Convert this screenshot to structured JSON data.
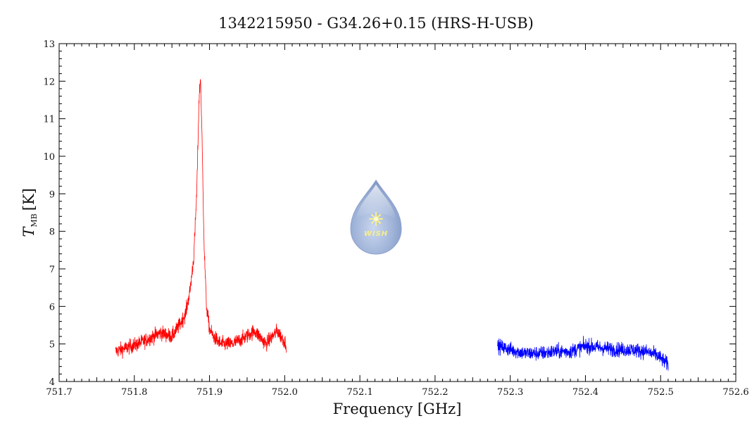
{
  "chart_data": {
    "type": "line",
    "title": "1342215950 - G34.26+0.15 (HRS-H-USB)",
    "xlabel": "Frequency [GHz]",
    "ylabel_main": "T",
    "ylabel_sub": "MB",
    "ylabel_unit": "[K]",
    "xlim": [
      751.7,
      752.6
    ],
    "ylim": [
      4,
      13
    ],
    "x_ticks": [
      "751.7",
      "751.8",
      "751.9",
      "752.0",
      "752.1",
      "752.2",
      "752.3",
      "752.4",
      "752.5",
      "752.6"
    ],
    "y_ticks": [
      "4",
      "5",
      "6",
      "7",
      "8",
      "9",
      "10",
      "11",
      "12",
      "13"
    ],
    "grid": false,
    "series": [
      {
        "color": "#ff0000",
        "x": [
          751.775,
          751.79,
          751.805,
          751.82,
          751.835,
          751.85,
          751.86,
          751.868,
          751.874,
          751.879,
          751.883,
          751.886,
          751.888,
          751.89,
          751.893,
          751.896,
          751.9,
          751.905,
          751.915,
          751.93,
          751.945,
          751.96,
          751.975,
          751.99,
          752.002
        ],
        "y": [
          4.8,
          4.9,
          5.0,
          5.15,
          5.3,
          5.2,
          5.5,
          5.8,
          6.4,
          7.3,
          9.0,
          11.5,
          12.1,
          10.5,
          7.5,
          6.0,
          5.4,
          5.2,
          5.0,
          5.0,
          5.15,
          5.35,
          5.0,
          5.35,
          5.0
        ]
      },
      {
        "color": "#0000ff",
        "x": [
          752.283,
          752.3,
          752.32,
          752.34,
          752.36,
          752.38,
          752.4,
          752.42,
          752.44,
          752.46,
          752.48,
          752.495,
          752.51
        ],
        "y": [
          4.95,
          4.85,
          4.75,
          4.75,
          4.8,
          4.8,
          4.95,
          4.9,
          4.85,
          4.85,
          4.8,
          4.7,
          4.45
        ]
      }
    ],
    "noise_amplitude": 0.14
  },
  "logo": {
    "text": "WISH",
    "body_color": "#9fb3d8",
    "star_color": "#f7ef8a"
  }
}
